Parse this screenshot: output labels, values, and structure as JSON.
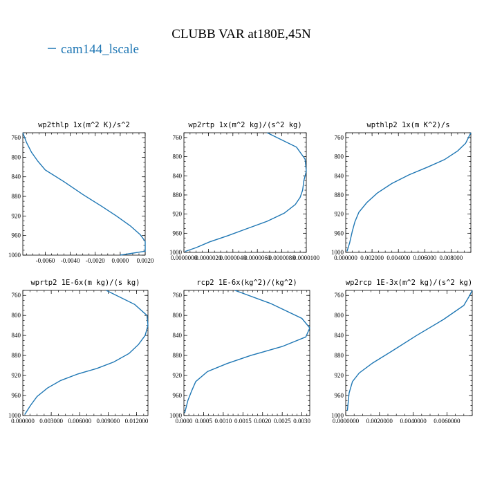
{
  "figure": {
    "title": "CLUBB VAR at180E,45N",
    "legend_label": "cam144_lscale",
    "legend_color": "#1f77b4"
  },
  "chart_data": [
    {
      "type": "line",
      "title": "wp2thlp  1x(m^2 K)/s^2",
      "series_name": "cam144_lscale",
      "xlim": [
        -0.0078,
        0.002
      ],
      "ylim": [
        1000,
        750
      ],
      "x_ticks": [
        -0.006,
        -0.004,
        -0.002,
        0.0,
        0.002
      ],
      "x_tick_labels": [
        "-0.0060",
        "-0.0040",
        "-0.0020",
        "0.0000",
        "0.0020"
      ],
      "y_ticks": [
        760,
        800,
        840,
        880,
        920,
        960,
        1000
      ],
      "y_tick_labels": [
        "760",
        "800",
        "840",
        "880",
        "920",
        "960",
        "1000"
      ],
      "x": [
        -0.0078,
        -0.0075,
        -0.0071,
        -0.0066,
        -0.006,
        -0.0045,
        -0.003,
        -0.0015,
        -0.0003,
        0.0008,
        0.0016,
        0.002,
        0.0021,
        0.002,
        0.0
      ],
      "y": [
        750,
        770,
        790,
        808,
        826,
        850,
        876,
        900,
        920,
        940,
        958,
        972,
        984,
        992,
        1000
      ]
    },
    {
      "type": "line",
      "title": "wp2rtp  1x(m^2 kg)/(s^2 kg)",
      "series_name": "cam144_lscale",
      "xlim": [
        0.0,
        1e-05
      ],
      "ylim": [
        1000,
        750
      ],
      "x_ticks": [
        0.0,
        2e-06,
        4e-06,
        6e-06,
        8e-06,
        1e-05
      ],
      "x_tick_labels": [
        "0.0000000",
        "0.0000020",
        "0.0000040",
        "0.0000060",
        "0.0000080",
        "0.0000100"
      ],
      "y_ticks": [
        760,
        800,
        840,
        880,
        920,
        960,
        1000
      ],
      "y_tick_labels": [
        "760",
        "800",
        "840",
        "880",
        "920",
        "960",
        "1000"
      ],
      "x": [
        6.8e-06,
        9.2e-06,
        9.9e-06,
        1e-05,
        9.8e-06,
        9.7e-06,
        9.5e-06,
        9.1e-06,
        8.2e-06,
        6.8e-06,
        5.2e-06,
        3.6e-06,
        2.1e-06,
        1e-06,
        1e-07
      ],
      "y": [
        750,
        780,
        805,
        830,
        850,
        870,
        885,
        900,
        918,
        935,
        950,
        965,
        978,
        990,
        998
      ]
    },
    {
      "type": "line",
      "title": "wpthlp2  1x(m K^2)/s",
      "series_name": "cam144_lscale",
      "xlim": [
        0.0,
        0.0095
      ],
      "ylim": [
        1000,
        750
      ],
      "x_ticks": [
        0.0,
        0.002,
        0.004,
        0.006,
        0.008
      ],
      "x_tick_labels": [
        "0.000000",
        "0.002000",
        "0.004000",
        "0.006000",
        "0.008000"
      ],
      "y_ticks": [
        760,
        800,
        840,
        880,
        920,
        960,
        1000
      ],
      "y_tick_labels": [
        "760",
        "800",
        "840",
        "880",
        "920",
        "960",
        "1000"
      ],
      "x": [
        0.0095,
        0.0091,
        0.0085,
        0.0075,
        0.0062,
        0.0048,
        0.0035,
        0.0024,
        0.0016,
        0.001,
        0.0007,
        0.0005,
        0.0003,
        0.0001
      ],
      "y": [
        750,
        772,
        788,
        806,
        822,
        838,
        856,
        876,
        896,
        916,
        936,
        956,
        980,
        998
      ]
    },
    {
      "type": "line",
      "title": "wprtp2  1E-6x(m kg)/(s kg)",
      "series_name": "cam144_lscale",
      "xlim": [
        0.0,
        0.0132
      ],
      "ylim": [
        1000,
        750
      ],
      "x_ticks": [
        0.0,
        0.003,
        0.006,
        0.009,
        0.012
      ],
      "x_tick_labels": [
        "0.000000",
        "0.003000",
        "0.006000",
        "0.009000",
        "0.012000"
      ],
      "y_ticks": [
        760,
        800,
        840,
        880,
        920,
        960,
        1000
      ],
      "y_tick_labels": [
        "760",
        "800",
        "840",
        "880",
        "920",
        "960",
        "1000"
      ],
      "x": [
        0.0088,
        0.0118,
        0.0131,
        0.0132,
        0.0129,
        0.0122,
        0.0112,
        0.0096,
        0.0078,
        0.0058,
        0.004,
        0.0026,
        0.0015,
        0.0008,
        0.0002
      ],
      "y": [
        750,
        778,
        800,
        820,
        840,
        858,
        876,
        893,
        906,
        917,
        930,
        945,
        962,
        980,
        998
      ]
    },
    {
      "type": "line",
      "title": "rcp2  1E-6x(kg^2)/(kg^2)",
      "series_name": "cam144_lscale",
      "xlim": [
        0.0,
        0.0032
      ],
      "ylim": [
        1000,
        750
      ],
      "x_ticks": [
        0.0,
        0.0005,
        0.001,
        0.0015,
        0.002,
        0.0025,
        0.003
      ],
      "x_tick_labels": [
        "0.0000",
        "0.0005",
        "0.0010",
        "0.0015",
        "0.0020",
        "0.0025",
        "0.0030"
      ],
      "y_ticks": [
        760,
        800,
        840,
        880,
        920,
        960,
        1000
      ],
      "y_tick_labels": [
        "760",
        "800",
        "840",
        "880",
        "920",
        "960",
        "1000"
      ],
      "x": [
        0.0013,
        0.0022,
        0.003,
        0.0032,
        0.0031,
        0.0025,
        0.0017,
        0.0011,
        0.0006,
        0.0003,
        0.0002,
        0.0001,
        2e-05
      ],
      "y": [
        750,
        776,
        806,
        825,
        843,
        862,
        880,
        896,
        912,
        932,
        950,
        970,
        995
      ]
    },
    {
      "type": "line",
      "title": "wp2rcp  1E-3x(m^2 kg)/(s^2 kg)",
      "series_name": "cam144_lscale",
      "xlim": [
        0.0,
        0.0075
      ],
      "ylim": [
        1000,
        750
      ],
      "x_ticks": [
        0.0,
        0.002,
        0.004,
        0.006
      ],
      "x_tick_labels": [
        "0.0000000",
        "0.0020000",
        "0.0040000",
        "0.0060000"
      ],
      "y_ticks": [
        760,
        800,
        840,
        880,
        920,
        960,
        1000
      ],
      "y_tick_labels": [
        "760",
        "800",
        "840",
        "880",
        "920",
        "960",
        "1000"
      ],
      "x": [
        0.0075,
        0.0073,
        0.007,
        0.0058,
        0.0042,
        0.0028,
        0.0016,
        0.0008,
        0.0004,
        0.0002,
        0.0001
      ],
      "y": [
        750,
        763,
        780,
        808,
        840,
        870,
        895,
        915,
        932,
        955,
        990
      ]
    }
  ]
}
